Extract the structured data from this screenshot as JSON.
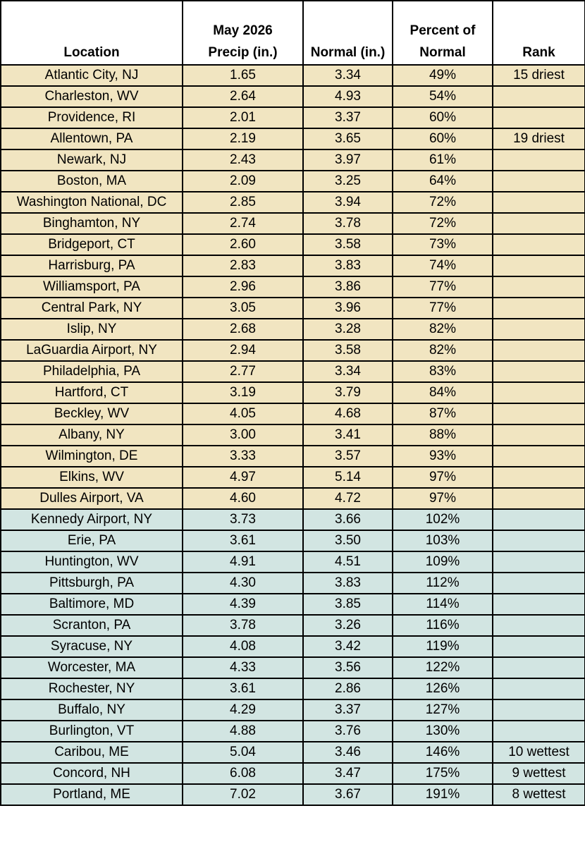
{
  "headers": {
    "location": "Location",
    "precip_line1": "May 2026",
    "precip_line2": "Precip (in.)",
    "normal": "Normal (in.)",
    "percent_line1": "Percent of",
    "percent_line2": "Normal",
    "rank": "Rank"
  },
  "colors": {
    "below_normal_fill": "#f1e5c1",
    "above_normal_fill": "#d2e5e2",
    "border": "#000000"
  },
  "rows": [
    {
      "location": "Atlantic City, NJ",
      "precip": "1.65",
      "normal": "3.34",
      "percent": "49%",
      "rank": "15 driest",
      "group": "dry"
    },
    {
      "location": "Charleston, WV",
      "precip": "2.64",
      "normal": "4.93",
      "percent": "54%",
      "rank": "",
      "group": "dry"
    },
    {
      "location": "Providence, RI",
      "precip": "2.01",
      "normal": "3.37",
      "percent": "60%",
      "rank": "",
      "group": "dry"
    },
    {
      "location": "Allentown, PA",
      "precip": "2.19",
      "normal": "3.65",
      "percent": "60%",
      "rank": "19 driest",
      "group": "dry"
    },
    {
      "location": "Newark, NJ",
      "precip": "2.43",
      "normal": "3.97",
      "percent": "61%",
      "rank": "",
      "group": "dry"
    },
    {
      "location": "Boston, MA",
      "precip": "2.09",
      "normal": "3.25",
      "percent": "64%",
      "rank": "",
      "group": "dry"
    },
    {
      "location": "Washington National, DC",
      "precip": "2.85",
      "normal": "3.94",
      "percent": "72%",
      "rank": "",
      "group": "dry"
    },
    {
      "location": "Binghamton, NY",
      "precip": "2.74",
      "normal": "3.78",
      "percent": "72%",
      "rank": "",
      "group": "dry"
    },
    {
      "location": "Bridgeport, CT",
      "precip": "2.60",
      "normal": "3.58",
      "percent": "73%",
      "rank": "",
      "group": "dry"
    },
    {
      "location": "Harrisburg, PA",
      "precip": "2.83",
      "normal": "3.83",
      "percent": "74%",
      "rank": "",
      "group": "dry"
    },
    {
      "location": "Williamsport, PA",
      "precip": "2.96",
      "normal": "3.86",
      "percent": "77%",
      "rank": "",
      "group": "dry"
    },
    {
      "location": "Central Park, NY",
      "precip": "3.05",
      "normal": "3.96",
      "percent": "77%",
      "rank": "",
      "group": "dry"
    },
    {
      "location": "Islip, NY",
      "precip": "2.68",
      "normal": "3.28",
      "percent": "82%",
      "rank": "",
      "group": "dry"
    },
    {
      "location": "LaGuardia Airport, NY",
      "precip": "2.94",
      "normal": "3.58",
      "percent": "82%",
      "rank": "",
      "group": "dry"
    },
    {
      "location": "Philadelphia, PA",
      "precip": "2.77",
      "normal": "3.34",
      "percent": "83%",
      "rank": "",
      "group": "dry"
    },
    {
      "location": "Hartford, CT",
      "precip": "3.19",
      "normal": "3.79",
      "percent": "84%",
      "rank": "",
      "group": "dry"
    },
    {
      "location": "Beckley, WV",
      "precip": "4.05",
      "normal": "4.68",
      "percent": "87%",
      "rank": "",
      "group": "dry"
    },
    {
      "location": "Albany, NY",
      "precip": "3.00",
      "normal": "3.41",
      "percent": "88%",
      "rank": "",
      "group": "dry"
    },
    {
      "location": "Wilmington, DE",
      "precip": "3.33",
      "normal": "3.57",
      "percent": "93%",
      "rank": "",
      "group": "dry"
    },
    {
      "location": "Elkins, WV",
      "precip": "4.97",
      "normal": "5.14",
      "percent": "97%",
      "rank": "",
      "group": "dry"
    },
    {
      "location": "Dulles Airport, VA",
      "precip": "4.60",
      "normal": "4.72",
      "percent": "97%",
      "rank": "",
      "group": "dry"
    },
    {
      "location": "Kennedy Airport, NY",
      "precip": "3.73",
      "normal": "3.66",
      "percent": "102%",
      "rank": "",
      "group": "wet"
    },
    {
      "location": "Erie, PA",
      "precip": "3.61",
      "normal": "3.50",
      "percent": "103%",
      "rank": "",
      "group": "wet"
    },
    {
      "location": "Huntington, WV",
      "precip": "4.91",
      "normal": "4.51",
      "percent": "109%",
      "rank": "",
      "group": "wet"
    },
    {
      "location": "Pittsburgh, PA",
      "precip": "4.30",
      "normal": "3.83",
      "percent": "112%",
      "rank": "",
      "group": "wet"
    },
    {
      "location": "Baltimore, MD",
      "precip": "4.39",
      "normal": "3.85",
      "percent": "114%",
      "rank": "",
      "group": "wet"
    },
    {
      "location": "Scranton, PA",
      "precip": "3.78",
      "normal": "3.26",
      "percent": "116%",
      "rank": "",
      "group": "wet"
    },
    {
      "location": "Syracuse, NY",
      "precip": "4.08",
      "normal": "3.42",
      "percent": "119%",
      "rank": "",
      "group": "wet"
    },
    {
      "location": "Worcester, MA",
      "precip": "4.33",
      "normal": "3.56",
      "percent": "122%",
      "rank": "",
      "group": "wet"
    },
    {
      "location": "Rochester, NY",
      "precip": "3.61",
      "normal": "2.86",
      "percent": "126%",
      "rank": "",
      "group": "wet"
    },
    {
      "location": "Buffalo, NY",
      "precip": "4.29",
      "normal": "3.37",
      "percent": "127%",
      "rank": "",
      "group": "wet"
    },
    {
      "location": "Burlington, VT",
      "precip": "4.88",
      "normal": "3.76",
      "percent": "130%",
      "rank": "",
      "group": "wet"
    },
    {
      "location": "Caribou, ME",
      "precip": "5.04",
      "normal": "3.46",
      "percent": "146%",
      "rank": "10 wettest",
      "group": "wet"
    },
    {
      "location": "Concord, NH",
      "precip": "6.08",
      "normal": "3.47",
      "percent": "175%",
      "rank": "9 wettest",
      "group": "wet"
    },
    {
      "location": "Portland, ME",
      "precip": "7.02",
      "normal": "3.67",
      "percent": "191%",
      "rank": "8 wettest",
      "group": "wet"
    }
  ]
}
